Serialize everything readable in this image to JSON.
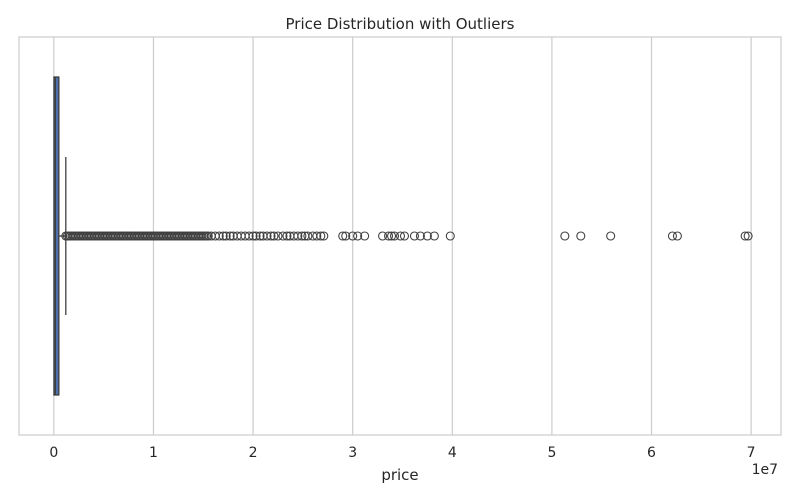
{
  "chart_data": {
    "type": "boxplot",
    "title": "Price Distribution with Outliers",
    "xlabel": "price",
    "ylabel": "",
    "x_offset_label": "1e7",
    "xlim": [
      -3500000,
      73000000
    ],
    "xticks": [
      0,
      1,
      2,
      3,
      4,
      5,
      6,
      7
    ],
    "tick_scale": 10000000,
    "grid": true,
    "orientation": "horizontal",
    "box": {
      "min": 0,
      "q1": 10000,
      "median": 150000,
      "q3": 500000,
      "whisker_low": 0,
      "whisker_high": 1200000
    },
    "dense_outlier_range": [
      1200000,
      15500000
    ],
    "outliers": [
      15800000,
      16200000,
      16600000,
      17000000,
      17300000,
      17700000,
      18000000,
      18400000,
      18800000,
      19200000,
      19600000,
      20000000,
      20300000,
      20700000,
      21000000,
      21400000,
      21800000,
      22100000,
      22500000,
      23000000,
      23400000,
      23700000,
      24100000,
      24500000,
      24900000,
      25200000,
      25500000,
      26000000,
      26400000,
      26800000,
      27100000,
      29000000,
      29300000,
      30000000,
      30500000,
      31200000,
      33000000,
      33600000,
      33900000,
      34200000,
      34800000,
      35200000,
      36200000,
      36800000,
      37500000,
      38200000,
      39800000,
      51300000,
      52900000,
      55900000,
      62100000,
      62600000,
      69400000,
      69700000
    ],
    "colors": {
      "box_fill": "#4c72b0",
      "line": "#3f3f3f",
      "grid": "#cccccc",
      "frame": "#cccccc"
    }
  }
}
